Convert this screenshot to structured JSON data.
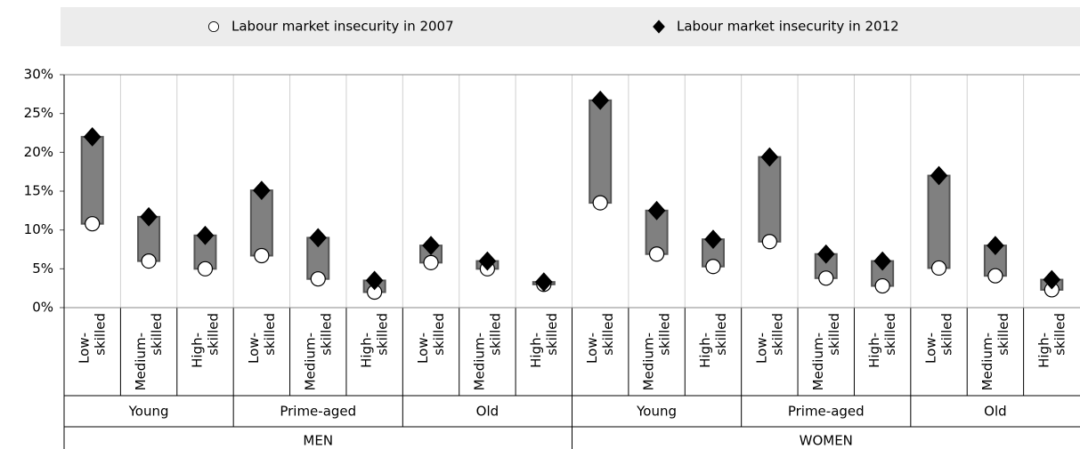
{
  "chart_data": {
    "type": "floating-range",
    "categories": [
      "Low-skilled",
      "Medium-skilled",
      "High-skilled",
      "Low-skilled",
      "Medium-skilled",
      "High-skilled",
      "Low-skilled",
      "Medium-skilled",
      "High-skilled",
      "Low-skilled",
      "Medium-skilled",
      "High-skilled",
      "Low-skilled",
      "Medium-skilled",
      "High-skilled",
      "Low-skilled",
      "Medium-skilled",
      "High-skilled"
    ],
    "age_groups": [
      "Young",
      "Prime-aged",
      "Old",
      "Young",
      "Prime-aged",
      "Old"
    ],
    "sex_groups": [
      "MEN",
      "WOMEN"
    ],
    "series": [
      {
        "name": "Labour market insecurity in 2007",
        "marker": "circle",
        "color": "#ffffff",
        "values": [
          10.8,
          6.0,
          5.0,
          6.7,
          3.7,
          2.0,
          5.8,
          5.0,
          3.0,
          13.5,
          6.9,
          5.3,
          8.5,
          3.8,
          2.8,
          5.1,
          4.1,
          2.3
        ]
      },
      {
        "name": "Labour market insecurity in 2012",
        "marker": "diamond",
        "color": "#000000",
        "values": [
          22.0,
          11.7,
          9.3,
          15.1,
          9.0,
          3.5,
          8.0,
          6.0,
          3.3,
          26.7,
          12.5,
          8.8,
          19.4,
          6.9,
          6.0,
          17.0,
          8.0,
          3.6
        ]
      }
    ],
    "bar_color": "#808080",
    "ylim": [
      0,
      30
    ],
    "yticks": [
      {
        "value": 0,
        "label": "0%"
      },
      {
        "value": 5,
        "label": "5%"
      },
      {
        "value": 10,
        "label": "10%"
      },
      {
        "value": 15,
        "label": "15%"
      },
      {
        "value": 20,
        "label": "20%"
      },
      {
        "value": 25,
        "label": "25%"
      },
      {
        "value": 30,
        "label": "30%"
      }
    ],
    "grid": true,
    "legend": "top"
  }
}
